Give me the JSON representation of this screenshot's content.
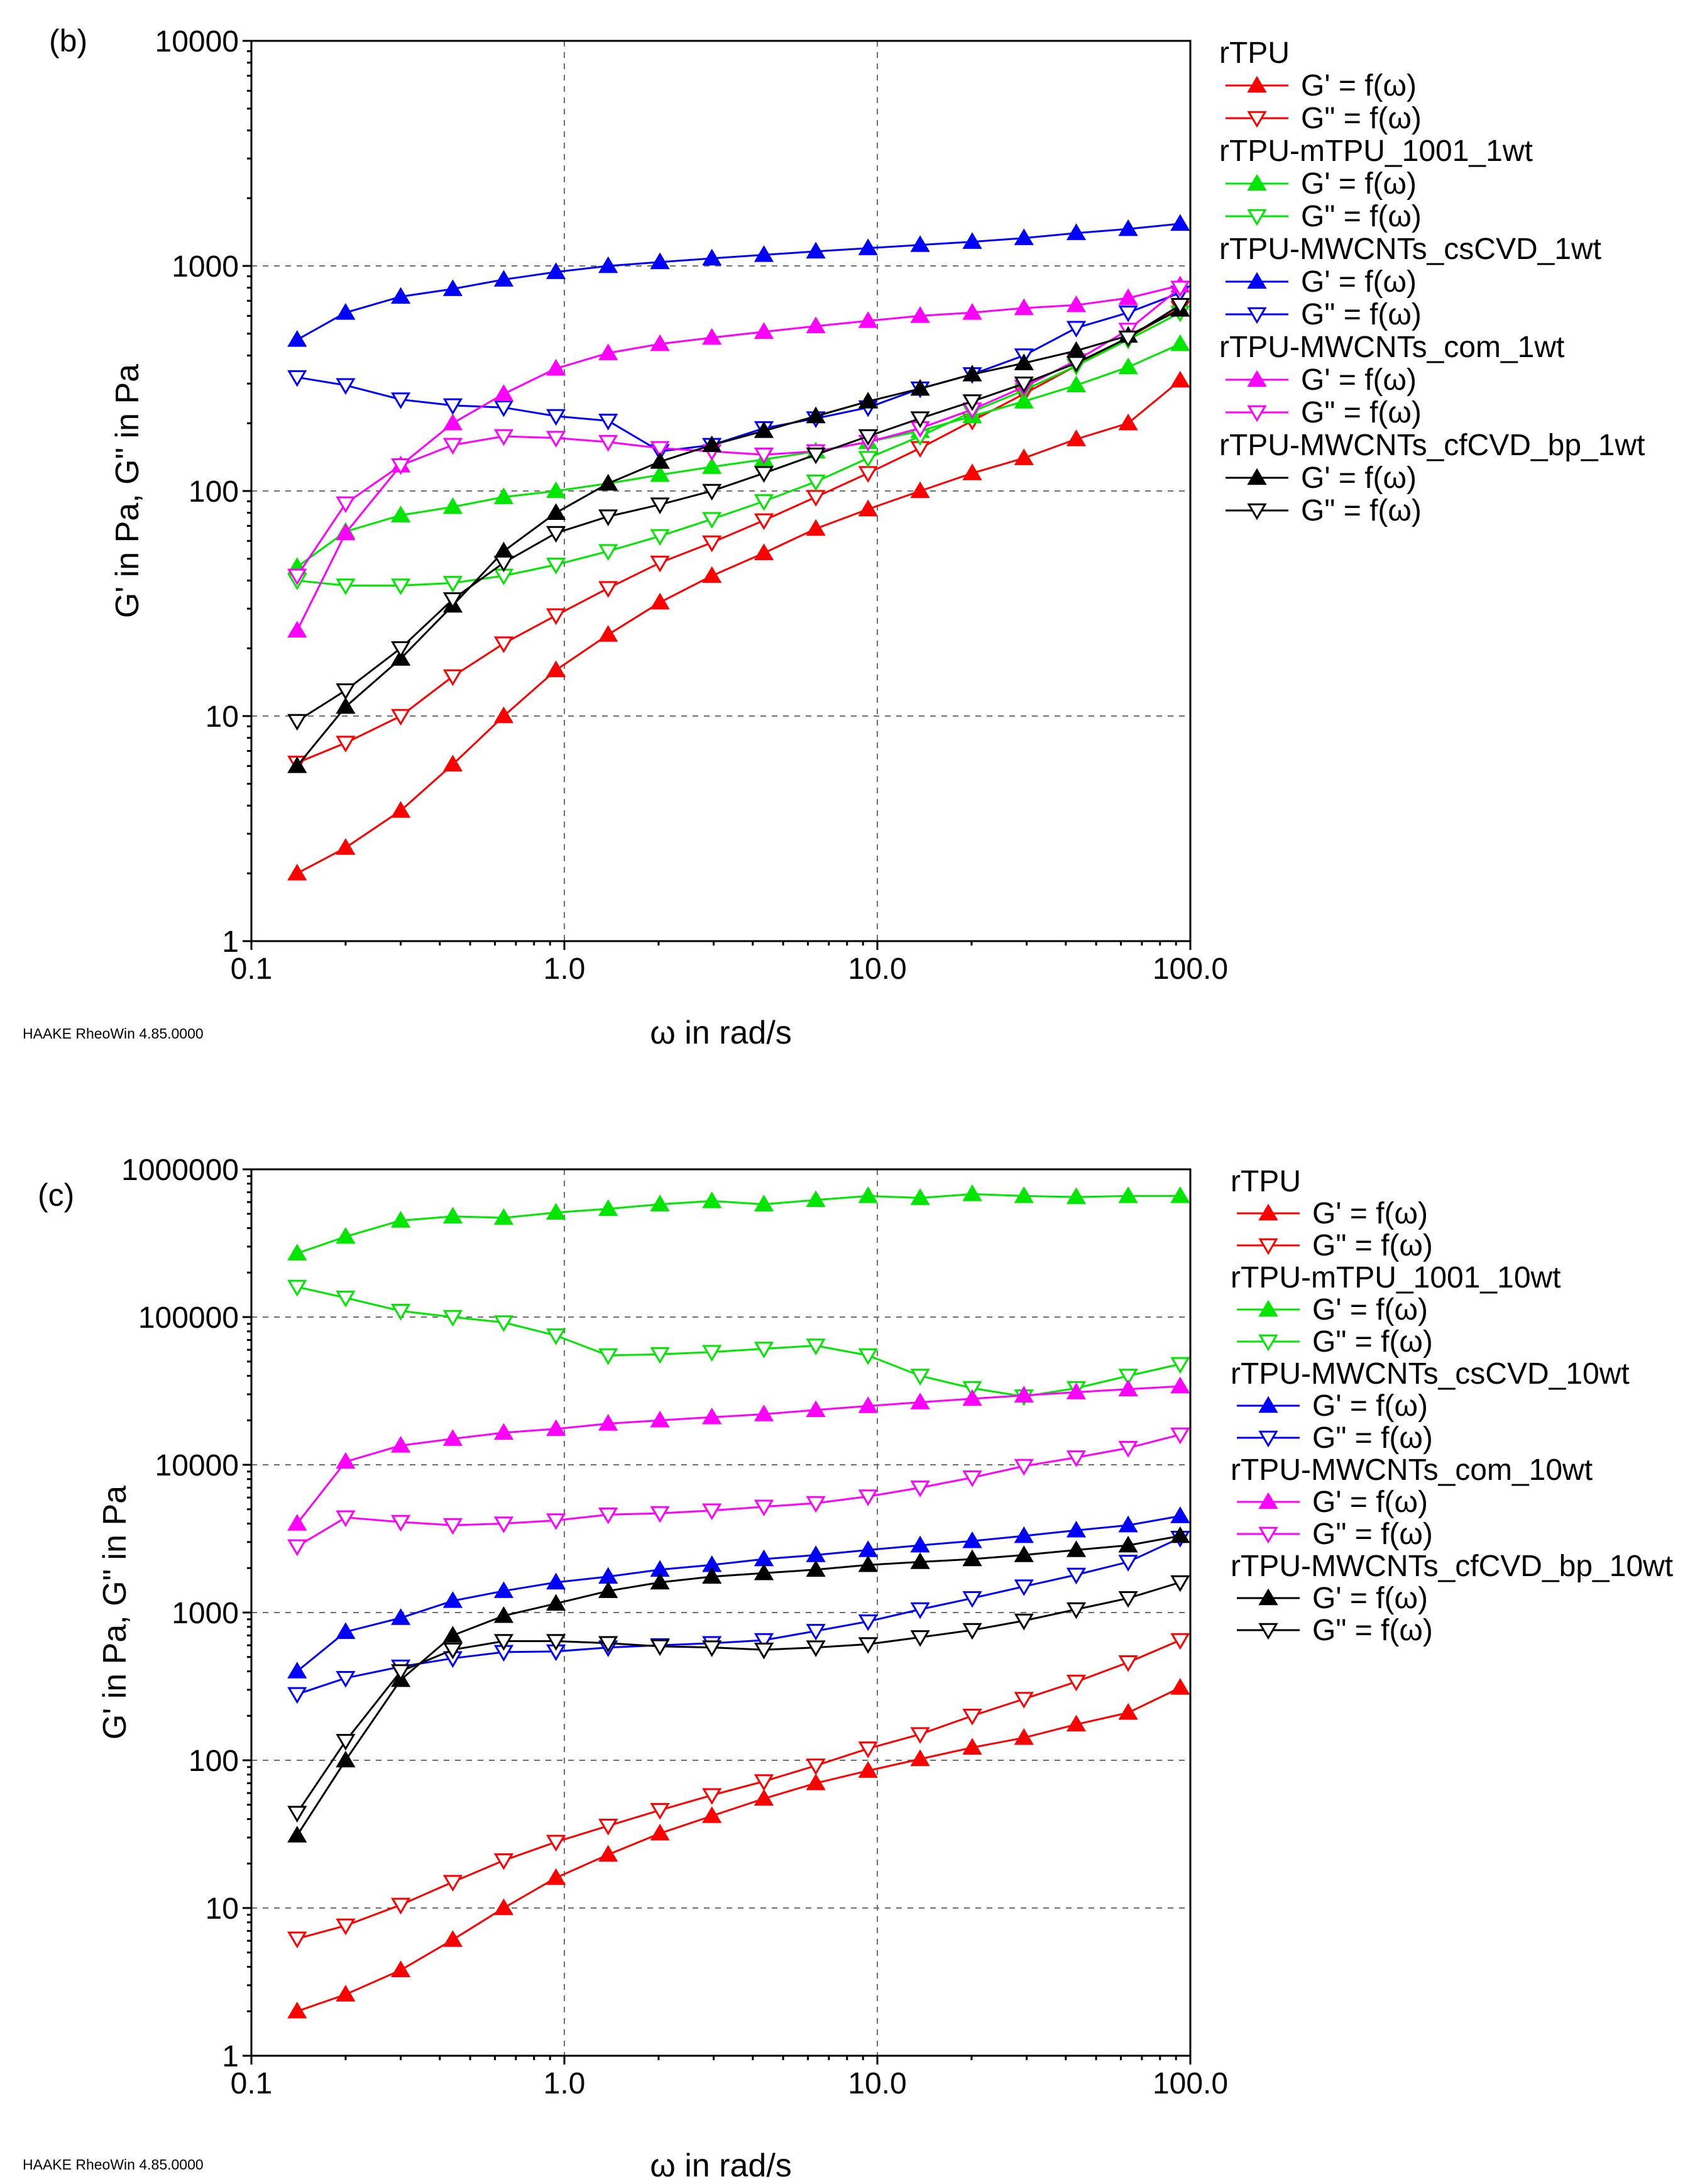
{
  "software_footer": "HAAKE RheoWin 4.85.0000",
  "colors": {
    "red": "#ff0000",
    "green": "#00e600",
    "blue": "#0000ff",
    "magenta": "#ff00ff",
    "black": "#000000"
  },
  "chart_data": [
    {
      "type": "line",
      "panel_label": "(b)",
      "xlabel": "ω in rad/s",
      "ylabel": "G' in Pa, G\" in Pa",
      "x_scale": "log",
      "y_scale": "log",
      "xlim": [
        0.1,
        100
      ],
      "ylim": [
        1,
        10000
      ],
      "grid": true,
      "legend_position": "right",
      "x_ticks": [
        {
          "value": 0.1,
          "label": "0.1"
        },
        {
          "value": 1,
          "label": "1.0"
        },
        {
          "value": 10,
          "label": "10.0"
        },
        {
          "value": 100,
          "label": "100.0"
        }
      ],
      "y_ticks": [
        {
          "value": 1,
          "label": "1"
        },
        {
          "value": 10,
          "label": "10"
        },
        {
          "value": 100,
          "label": "100"
        },
        {
          "value": 1000,
          "label": "1000"
        },
        {
          "value": 10000,
          "label": "10000"
        }
      ],
      "x": [
        0.14,
        0.2,
        0.3,
        0.44,
        0.64,
        0.94,
        1.38,
        2.02,
        2.96,
        4.34,
        6.36,
        9.34,
        13.7,
        20.1,
        29.4,
        43.2,
        63.3,
        92.8
      ],
      "groups": [
        {
          "name": "rTPU",
          "color": "red",
          "series": [
            {
              "name": "G' = f(ω)",
              "marker": "filled-up",
              "values": [
                2.0,
                2.6,
                3.8,
                6.1,
                10,
                16,
                23,
                32,
                42,
                53,
                68,
                83,
                100,
                120,
                140,
                170,
                200,
                310
              ]
            },
            {
              "name": "G\" = f(ω)",
              "marker": "open-down",
              "values": [
                6.2,
                7.6,
                10,
                15,
                21,
                28,
                37,
                48,
                59,
                74,
                94,
                120,
                155,
                205,
                270,
                360,
                480,
                650
              ]
            }
          ]
        },
        {
          "name": "rTPU-mTPU_1001_1wt",
          "color": "green",
          "series": [
            {
              "name": "G' = f(ω)",
              "marker": "filled-up",
              "values": [
                46,
                66,
                78,
                85,
                94,
                100,
                108,
                118,
                128,
                138,
                150,
                165,
                185,
                215,
                250,
                295,
                355,
                450
              ]
            },
            {
              "name": "G\" = f(ω)",
              "marker": "open-down",
              "values": [
                40,
                38,
                38,
                39,
                42,
                47,
                54,
                63,
                75,
                90,
                110,
                140,
                175,
                225,
                280,
                360,
                470,
                620
              ]
            }
          ]
        },
        {
          "name": "rTPU-MWCNTs_csCVD_1wt",
          "color": "blue",
          "series": [
            {
              "name": "G' = f(ω)",
              "marker": "filled-up",
              "values": [
                470,
                620,
                730,
                790,
                870,
                940,
                1000,
                1040,
                1080,
                1120,
                1160,
                1200,
                1240,
                1280,
                1330,
                1400,
                1460,
                1540
              ]
            },
            {
              "name": "G\" = f(ω)",
              "marker": "open-down",
              "values": [
                320,
                295,
                255,
                240,
                235,
                215,
                205,
                150,
                160,
                190,
                210,
                235,
                285,
                330,
                400,
                530,
                620,
                760
              ]
            }
          ]
        },
        {
          "name": "rTPU-MWCNTs_com_1wt",
          "color": "magenta",
          "series": [
            {
              "name": "G' = f(ω)",
              "marker": "filled-up",
              "values": [
                24,
                65,
                130,
                200,
                270,
                350,
                410,
                450,
                480,
                510,
                540,
                570,
                600,
                620,
                650,
                670,
                720,
                820
              ]
            },
            {
              "name": "G\" = f(ω)",
              "marker": "open-down",
              "values": [
                42,
                88,
                130,
                160,
                175,
                172,
                165,
                155,
                150,
                145,
                150,
                165,
                190,
                230,
                290,
                380,
                520,
                800
              ]
            }
          ]
        },
        {
          "name": "rTPU-MWCNTs_cfCVD_bp_1wt",
          "color": "black",
          "series": [
            {
              "name": "G' = f(ω)",
              "marker": "filled-up",
              "values": [
                6,
                11,
                18,
                31,
                54,
                80,
                108,
                135,
                160,
                185,
                215,
                250,
                285,
                330,
                370,
                420,
                490,
                640
              ]
            },
            {
              "name": "G\" = f(ω)",
              "marker": "open-down",
              "values": [
                9.5,
                13,
                20,
                33,
                48,
                65,
                77,
                87,
                100,
                120,
                145,
                175,
                210,
                250,
                300,
                370,
                480,
                670
              ]
            }
          ]
        }
      ]
    },
    {
      "type": "line",
      "panel_label": "(c)",
      "xlabel": "ω in rad/s",
      "ylabel": "G' in Pa, G\" in Pa",
      "x_scale": "log",
      "y_scale": "log",
      "xlim": [
        0.1,
        100
      ],
      "ylim": [
        1,
        1000000
      ],
      "grid": true,
      "legend_position": "right",
      "x_ticks": [
        {
          "value": 0.1,
          "label": "0.1"
        },
        {
          "value": 1,
          "label": "1.0"
        },
        {
          "value": 10,
          "label": "10.0"
        },
        {
          "value": 100,
          "label": "100.0"
        }
      ],
      "y_ticks": [
        {
          "value": 1,
          "label": "1"
        },
        {
          "value": 10,
          "label": "10"
        },
        {
          "value": 100,
          "label": "100"
        },
        {
          "value": 1000,
          "label": "1000"
        },
        {
          "value": 10000,
          "label": "10000"
        },
        {
          "value": 100000,
          "label": "100000"
        },
        {
          "value": 1000000,
          "label": "1000000"
        }
      ],
      "x": [
        0.14,
        0.2,
        0.3,
        0.44,
        0.64,
        0.94,
        1.38,
        2.02,
        2.96,
        4.34,
        6.36,
        9.34,
        13.7,
        20.1,
        29.4,
        43.2,
        63.3,
        92.8
      ],
      "groups": [
        {
          "name": "rTPU",
          "color": "red",
          "series": [
            {
              "name": "G' = f(ω)",
              "marker": "filled-up",
              "values": [
                2.0,
                2.6,
                3.8,
                6.1,
                10,
                16,
                23,
                32,
                42,
                55,
                70,
                85,
                102,
                122,
                142,
                175,
                210,
                310
              ]
            },
            {
              "name": "G\" = f(ω)",
              "marker": "open-down",
              "values": [
                6.2,
                7.6,
                10.5,
                15,
                21,
                28,
                36,
                46,
                58,
                72,
                92,
                120,
                150,
                200,
                260,
                340,
                460,
                650
              ]
            }
          ]
        },
        {
          "name": "rTPU-mTPU_1001_10wt",
          "color": "green",
          "series": [
            {
              "name": "G' = f(ω)",
              "marker": "filled-up",
              "values": [
                270000,
                350000,
                450000,
                480000,
                470000,
                510000,
                540000,
                580000,
                610000,
                580000,
                620000,
                660000,
                640000,
                680000,
                660000,
                650000,
                660000,
                660000
              ]
            },
            {
              "name": "G\" = f(ω)",
              "marker": "open-down",
              "values": [
                160000,
                135000,
                110000,
                100000,
                92000,
                75000,
                55000,
                56000,
                58000,
                61000,
                64000,
                55000,
                40000,
                33000,
                29000,
                33000,
                40000,
                48000
              ]
            }
          ]
        },
        {
          "name": "rTPU-MWCNTs_csCVD_10wt",
          "color": "blue",
          "series": [
            {
              "name": "G' = f(ω)",
              "marker": "filled-up",
              "values": [
                400,
                740,
                920,
                1200,
                1400,
                1600,
                1750,
                1950,
                2100,
                2300,
                2450,
                2650,
                2850,
                3050,
                3300,
                3600,
                3900,
                4500
              ]
            },
            {
              "name": "G\" = f(ω)",
              "marker": "open-down",
              "values": [
                280,
                360,
                430,
                490,
                540,
                545,
                580,
                600,
                620,
                650,
                750,
                870,
                1050,
                1250,
                1500,
                1800,
                2200,
                3200
              ]
            }
          ]
        },
        {
          "name": "rTPU-MWCNTs_com_10wt",
          "color": "magenta",
          "series": [
            {
              "name": "G' = f(ω)",
              "marker": "filled-up",
              "values": [
                4000,
                10500,
                13500,
                15000,
                16500,
                17500,
                19000,
                20000,
                21000,
                22000,
                23500,
                25000,
                26500,
                28000,
                29500,
                31000,
                32500,
                34000
              ]
            },
            {
              "name": "G\" = f(ω)",
              "marker": "open-down",
              "values": [
                2800,
                4400,
                4100,
                3900,
                4000,
                4200,
                4600,
                4700,
                4900,
                5200,
                5500,
                6100,
                7000,
                8200,
                9800,
                11200,
                13000,
                16000
              ]
            }
          ]
        },
        {
          "name": "rTPU-MWCNTs_cfCVD_bp_10wt",
          "color": "black",
          "series": [
            {
              "name": "G' = f(ω)",
              "marker": "filled-up",
              "values": [
                31,
                100,
                350,
                700,
                950,
                1150,
                1400,
                1600,
                1750,
                1850,
                1950,
                2100,
                2200,
                2300,
                2450,
                2650,
                2850,
                3300
              ]
            },
            {
              "name": "G\" = f(ω)",
              "marker": "open-down",
              "values": [
                44,
                135,
                400,
                560,
                640,
                640,
                620,
                590,
                580,
                560,
                580,
                610,
                680,
                760,
                880,
                1050,
                1250,
                1600
              ]
            }
          ]
        }
      ]
    }
  ]
}
